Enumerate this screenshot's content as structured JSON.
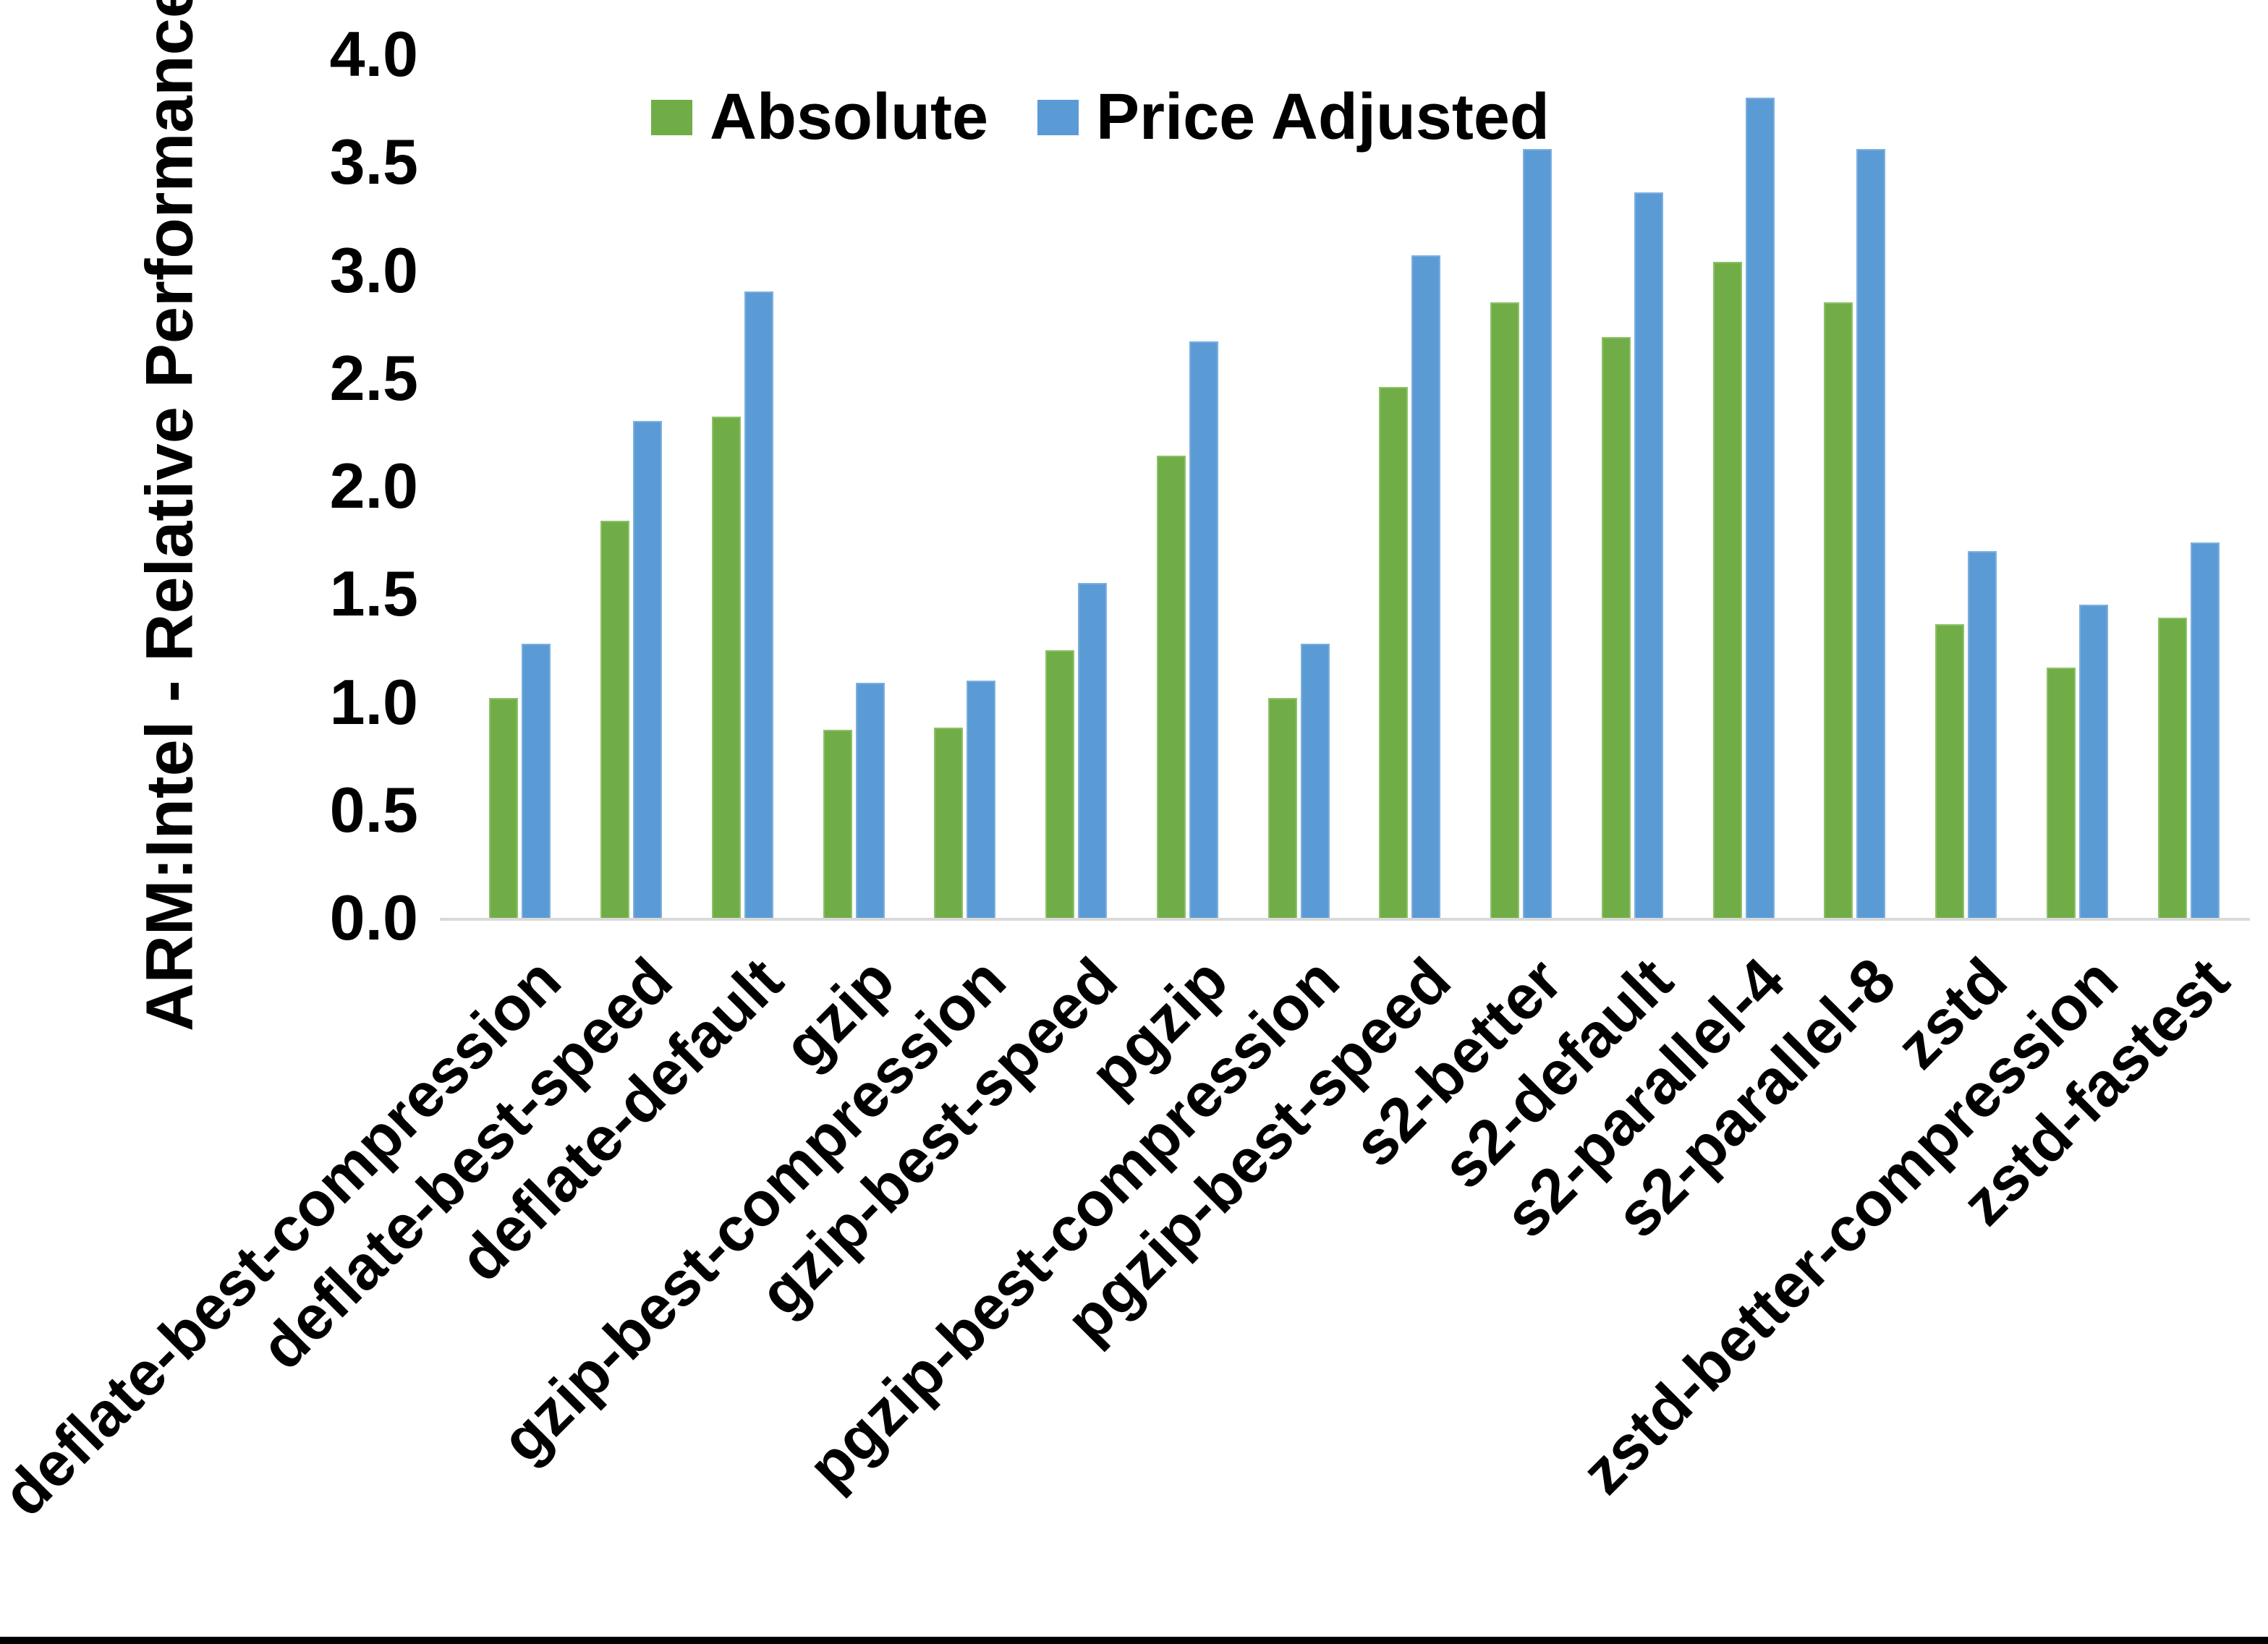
{
  "chart_data": {
    "type": "bar",
    "title": "",
    "ylabel": "ARM:Intel - Relative Performance",
    "xlabel": "",
    "ylim": [
      0.0,
      4.0
    ],
    "ytick_step": 0.5,
    "ytick_labels": [
      "0.0",
      "0.5",
      "1.0",
      "1.5",
      "2.0",
      "2.5",
      "3.0",
      "3.5",
      "4.0"
    ],
    "grid": false,
    "legend_position": "top",
    "categories": [
      "deflate-best-compression",
      "deflate-best-speed",
      "deflate-default",
      "gzip",
      "gzip-best-compression",
      "gzip-best-speed",
      "pgzip",
      "pgzip-best-compression",
      "pgzip-best-speed",
      "s2-better",
      "s2-default",
      "s2-parallel-4",
      "s2-parallel-8",
      "zstd",
      "zstd-better-compression",
      "zstd-fastest"
    ],
    "series": [
      {
        "name": "Absolute",
        "color": "#70AD47",
        "values": [
          1.02,
          1.84,
          2.32,
          0.87,
          0.88,
          1.24,
          2.14,
          1.02,
          2.46,
          2.85,
          2.69,
          3.04,
          2.85,
          1.36,
          1.16,
          1.39
        ]
      },
      {
        "name": "Price Adjusted",
        "color": "#5B9BD5",
        "values": [
          1.27,
          2.3,
          2.9,
          1.09,
          1.1,
          1.55,
          2.67,
          1.27,
          3.07,
          3.56,
          3.36,
          3.8,
          3.56,
          1.7,
          1.45,
          1.74
        ]
      }
    ],
    "axis_line_color": "#d9d9d9",
    "text_color": "#000000"
  }
}
